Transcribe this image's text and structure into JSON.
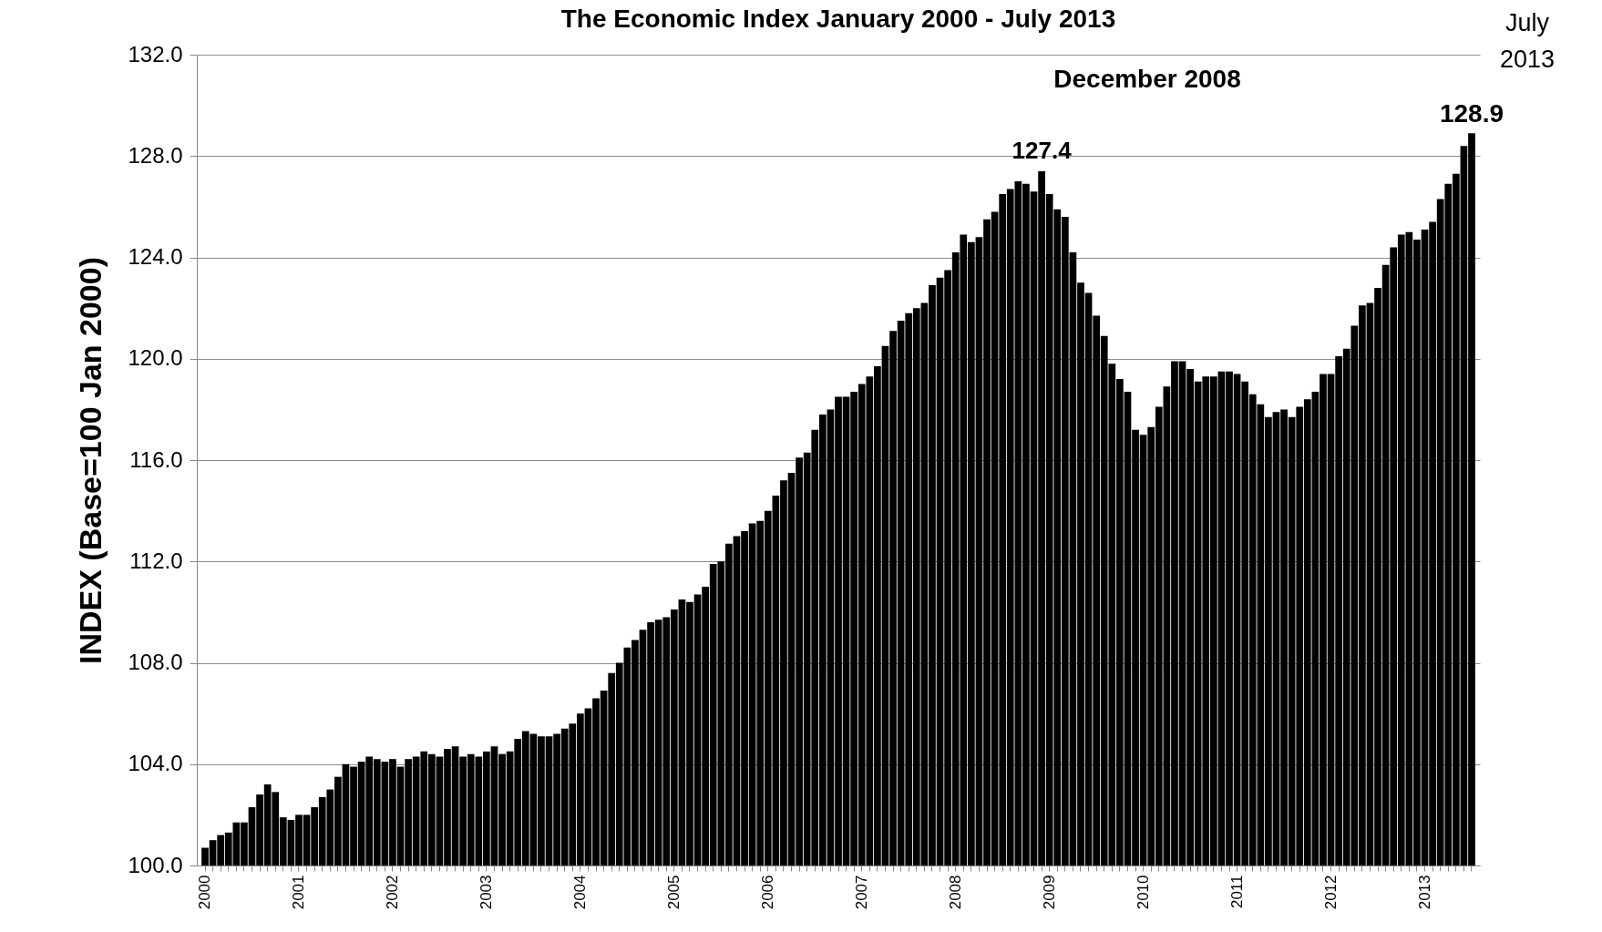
{
  "chart_data": {
    "type": "bar",
    "title": "The Economic Index January 2000 - July 2013",
    "ylabel": "INDEX (Base=100 Jan 2000)",
    "categories": [
      "2000",
      null,
      null,
      null,
      null,
      null,
      null,
      null,
      null,
      null,
      null,
      null,
      "2001",
      null,
      null,
      null,
      null,
      null,
      null,
      null,
      null,
      null,
      null,
      null,
      "2002",
      null,
      null,
      null,
      null,
      null,
      null,
      null,
      null,
      null,
      null,
      null,
      "2003",
      null,
      null,
      null,
      null,
      null,
      null,
      null,
      null,
      null,
      null,
      null,
      "2004",
      null,
      null,
      null,
      null,
      null,
      null,
      null,
      null,
      null,
      null,
      null,
      "2005",
      null,
      null,
      null,
      null,
      null,
      null,
      null,
      null,
      null,
      null,
      null,
      "2006",
      null,
      null,
      null,
      null,
      null,
      null,
      null,
      null,
      null,
      null,
      null,
      "2007",
      null,
      null,
      null,
      null,
      null,
      null,
      null,
      null,
      null,
      null,
      null,
      "2008",
      null,
      null,
      null,
      null,
      null,
      null,
      null,
      null,
      null,
      null,
      null,
      "2009",
      null,
      null,
      null,
      null,
      null,
      null,
      null,
      null,
      null,
      null,
      null,
      "2010",
      null,
      null,
      null,
      null,
      null,
      null,
      null,
      null,
      null,
      null,
      null,
      "2011",
      null,
      null,
      null,
      null,
      null,
      null,
      null,
      null,
      null,
      null,
      null,
      "2012",
      null,
      null,
      null,
      null,
      null,
      null,
      null,
      null,
      null,
      null,
      null,
      "2013",
      null,
      null,
      null,
      null,
      null,
      null
    ],
    "values": [
      100.7,
      101.0,
      101.2,
      101.3,
      101.7,
      101.7,
      102.3,
      102.8,
      103.2,
      102.9,
      101.9,
      101.8,
      102.0,
      102.0,
      102.3,
      102.7,
      103.0,
      103.5,
      104.0,
      103.9,
      104.1,
      104.3,
      104.2,
      104.1,
      104.2,
      103.9,
      104.2,
      104.3,
      104.5,
      104.4,
      104.3,
      104.6,
      104.7,
      104.3,
      104.4,
      104.3,
      104.5,
      104.7,
      104.4,
      104.5,
      105.0,
      105.3,
      105.2,
      105.1,
      105.1,
      105.2,
      105.4,
      105.6,
      106.0,
      106.2,
      106.6,
      106.9,
      107.6,
      108.0,
      108.6,
      108.9,
      109.3,
      109.6,
      109.7,
      109.8,
      110.1,
      110.5,
      110.4,
      110.7,
      111.0,
      111.9,
      112.0,
      112.7,
      113.0,
      113.2,
      113.5,
      113.6,
      114.0,
      114.6,
      115.2,
      115.5,
      116.1,
      116.3,
      117.2,
      117.8,
      118.0,
      118.5,
      118.5,
      118.7,
      119.0,
      119.3,
      119.7,
      120.5,
      121.1,
      121.5,
      121.8,
      122.0,
      122.2,
      122.9,
      123.2,
      123.5,
      124.2,
      124.9,
      124.6,
      124.8,
      125.5,
      125.8,
      126.5,
      126.7,
      127.0,
      126.9,
      126.6,
      127.4,
      126.5,
      125.9,
      125.6,
      124.2,
      123.0,
      122.6,
      121.7,
      120.9,
      119.8,
      119.2,
      118.7,
      117.2,
      117.0,
      117.3,
      118.1,
      118.9,
      119.9,
      119.9,
      119.6,
      119.1,
      119.3,
      119.3,
      119.5,
      119.5,
      119.4,
      119.1,
      118.6,
      118.2,
      117.7,
      117.9,
      118.0,
      117.7,
      118.1,
      118.4,
      118.7,
      119.4,
      119.4,
      120.1,
      120.4,
      121.3,
      122.1,
      122.2,
      122.8,
      123.7,
      124.4,
      124.9,
      125.0,
      124.7,
      125.1,
      125.4,
      126.3,
      126.9,
      127.3,
      128.4,
      128.9
    ],
    "value_labels": [
      null,
      null,
      null,
      null,
      null,
      null,
      null,
      null,
      null,
      null,
      null,
      null,
      null,
      null,
      null,
      null,
      null,
      null,
      null,
      null,
      null,
      null,
      null,
      null,
      null,
      null,
      null,
      null,
      null,
      null,
      null,
      null,
      null,
      null,
      null,
      null,
      null,
      null,
      null,
      null,
      null,
      null,
      null,
      null,
      null,
      null,
      null,
      null,
      null,
      null,
      null,
      null,
      null,
      null,
      null,
      null,
      null,
      null,
      null,
      null,
      null,
      null,
      null,
      null,
      null,
      null,
      null,
      null,
      null,
      null,
      null,
      null,
      null,
      null,
      null,
      null,
      null,
      null,
      null,
      null,
      null,
      null,
      null,
      null,
      null,
      null,
      null,
      null,
      null,
      null,
      null,
      null,
      null,
      null,
      null,
      null,
      null,
      null,
      null,
      null,
      null,
      null,
      null,
      null,
      null,
      null,
      null,
      "127.4",
      null,
      null,
      null,
      null,
      null,
      null,
      null,
      null,
      null,
      null,
      null,
      null,
      null,
      null,
      null,
      null,
      null,
      null,
      null,
      null,
      null,
      null,
      null,
      null,
      null,
      null,
      null,
      null,
      null,
      null,
      null,
      null,
      null,
      null,
      null,
      null,
      null,
      null,
      null,
      null,
      null,
      null,
      null,
      null,
      null,
      null,
      null,
      null,
      null,
      null,
      null,
      null,
      null,
      null,
      "128.9"
    ],
    "color": "#000000",
    "ylim": [
      100,
      132
    ],
    "yticks": [
      {
        "value": 100,
        "label": "100.0"
      },
      {
        "value": 104,
        "label": "104.0"
      },
      {
        "value": 108,
        "label": "108.0"
      },
      {
        "value": 112,
        "label": "112.0"
      },
      {
        "value": 116,
        "label": "116.0"
      },
      {
        "value": 120,
        "label": "120.0"
      },
      {
        "value": 124,
        "label": "124.0"
      },
      {
        "value": 128,
        "label": "128.0"
      },
      {
        "value": 132,
        "label": "132.0"
      }
    ],
    "grid": "y",
    "annotations": [
      "December 2008",
      "July 2013"
    ]
  }
}
